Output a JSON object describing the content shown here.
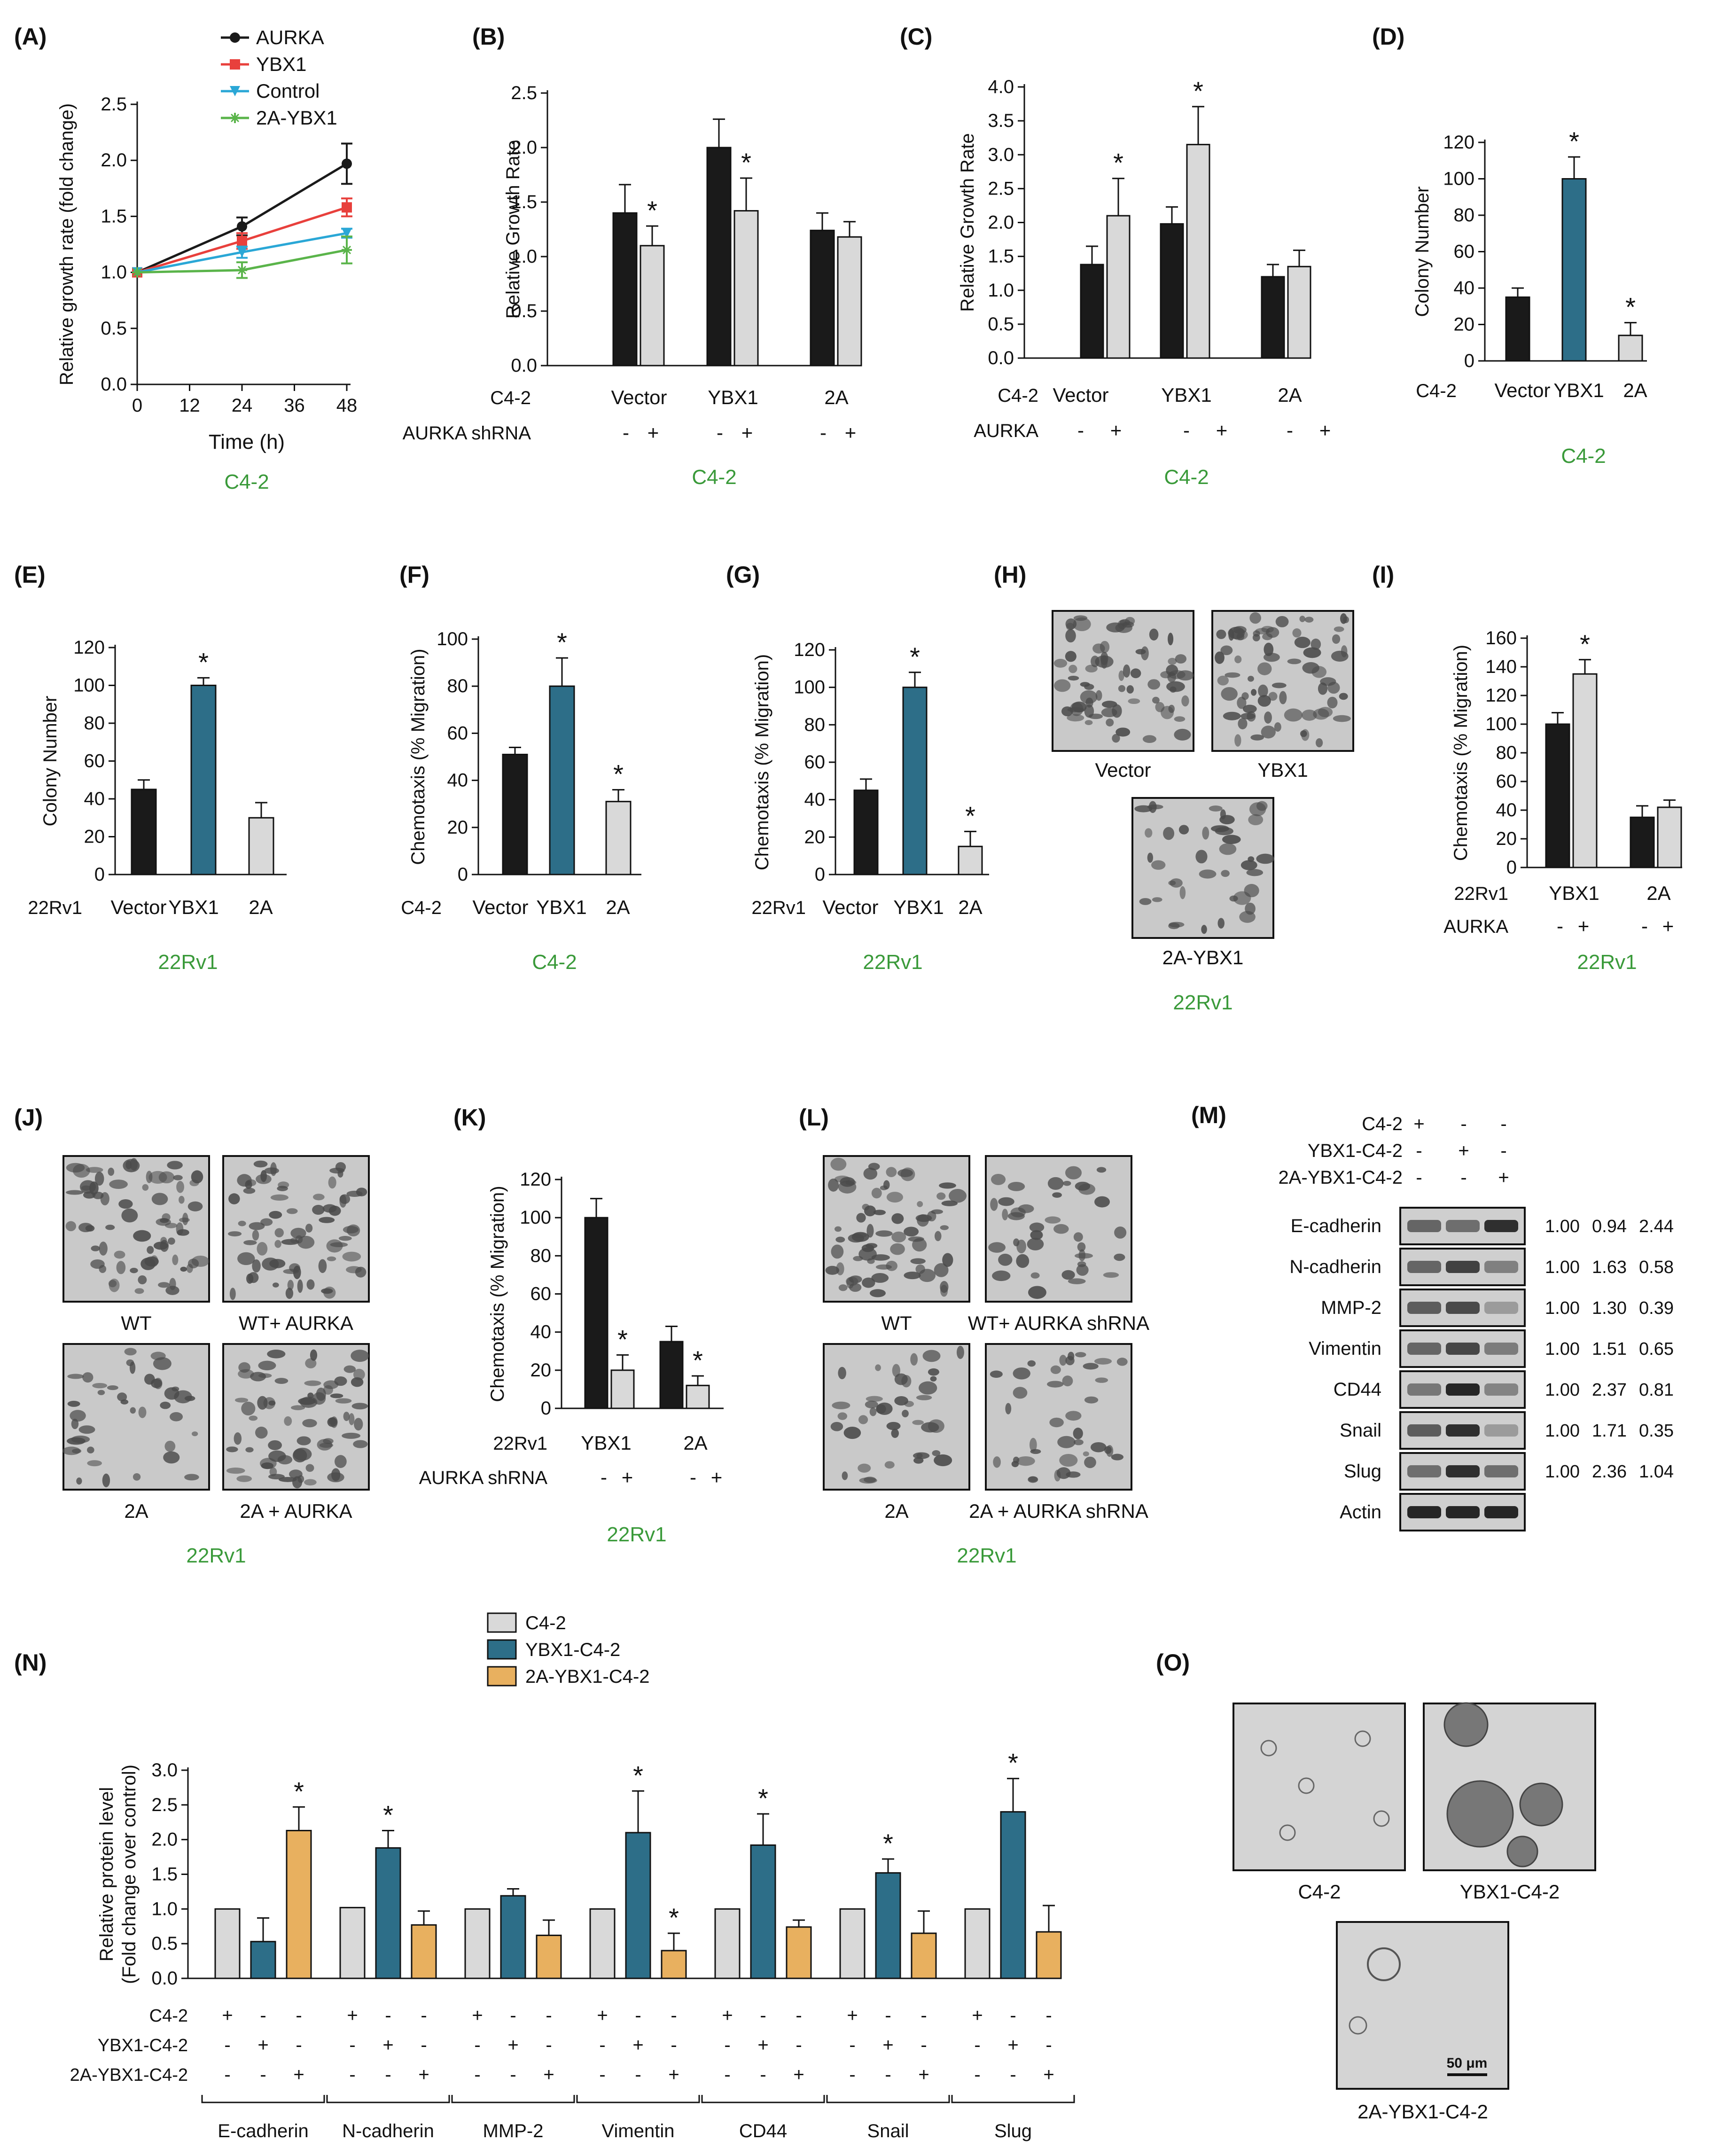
{
  "colors": {
    "black": "#1a1a1a",
    "grey": "#d9d9d9",
    "teal": "#2d6e88",
    "orange": "#e8b05f",
    "red": "#e8403c",
    "blue": "#2aa7d6",
    "green": "#5ab44a",
    "caption": "#3a9a3a"
  },
  "chart_data": [
    {
      "panel": "(A)",
      "type": "line",
      "caption": "C4-2",
      "xlabel": "Time (h)",
      "ylabel": "Relative growth rate (fold change)",
      "x": [
        0,
        24,
        48
      ],
      "xticks": [
        "0",
        "12",
        "24",
        "36",
        "48"
      ],
      "yticks": [
        "0.0",
        "0.5",
        "1.0",
        "1.5",
        "2.0",
        "2.5"
      ],
      "ylim": [
        0,
        2.5
      ],
      "series": [
        {
          "name": "AURKA",
          "values": [
            1.0,
            1.41,
            1.97
          ],
          "err": [
            0,
            0.08,
            0.18
          ],
          "color": "#1a1a1a"
        },
        {
          "name": "YBX1",
          "values": [
            1.0,
            1.28,
            1.58
          ],
          "err": [
            0,
            0.07,
            0.08
          ],
          "color": "#e8403c"
        },
        {
          "name": "Control",
          "values": [
            1.0,
            1.18,
            1.35
          ],
          "err": [
            0,
            0.05,
            0.04
          ],
          "color": "#2aa7d6"
        },
        {
          "name": "2A-YBX1",
          "values": [
            1.0,
            1.02,
            1.2
          ],
          "err": [
            0,
            0.07,
            0.12
          ],
          "color": "#5ab44a"
        }
      ]
    },
    {
      "panel": "(B)",
      "type": "bar",
      "caption": "C4-2",
      "ylabel": "Relative Growth Rate",
      "yticks": [
        "0.0",
        "0.5",
        "1.0",
        "1.5",
        "2.0",
        "2.5"
      ],
      "ylim": [
        0,
        2.5
      ],
      "row1_label": "C4-2",
      "row2_label": "AURKA shRNA",
      "groups": [
        "Vector",
        "YBX1",
        "2A"
      ],
      "signs": [
        "-",
        "+"
      ],
      "values": [
        [
          1.4,
          1.1
        ],
        [
          2.0,
          1.42
        ],
        [
          1.24,
          1.18
        ]
      ],
      "err": [
        [
          0.26,
          0.18
        ],
        [
          0.26,
          0.3
        ],
        [
          0.16,
          0.14
        ]
      ],
      "stars": [
        [
          false,
          true
        ],
        [
          false,
          true
        ],
        [
          false,
          false
        ]
      ],
      "colors": [
        [
          "#1a1a1a",
          "#d9d9d9"
        ],
        [
          "#1a1a1a",
          "#d9d9d9"
        ],
        [
          "#1a1a1a",
          "#d9d9d9"
        ]
      ]
    },
    {
      "panel": "(C)",
      "type": "bar",
      "caption": "C4-2",
      "ylabel": "Relative Growth Rate",
      "yticks": [
        "0.0",
        "0.5",
        "1.0",
        "1.5",
        "2.0",
        "2.5",
        "3.0",
        "3.5",
        "4.0"
      ],
      "ylim": [
        0,
        4.0
      ],
      "row1_label": "C4-2",
      "row2_label": "AURKA",
      "groups": [
        "Vector",
        "YBX1",
        "2A"
      ],
      "signs": [
        "-",
        "+"
      ],
      "values": [
        [
          1.38,
          2.1
        ],
        [
          1.98,
          3.15
        ],
        [
          1.2,
          1.35
        ]
      ],
      "err": [
        [
          0.27,
          0.55
        ],
        [
          0.25,
          0.56
        ],
        [
          0.18,
          0.24
        ]
      ],
      "stars": [
        [
          false,
          true
        ],
        [
          false,
          true
        ],
        [
          false,
          false
        ]
      ],
      "colors": [
        [
          "#1a1a1a",
          "#d9d9d9"
        ],
        [
          "#1a1a1a",
          "#d9d9d9"
        ],
        [
          "#1a1a1a",
          "#d9d9d9"
        ]
      ]
    },
    {
      "panel": "(D)",
      "type": "bar",
      "caption": "C4-2",
      "ylabel": "Colony Number",
      "yticks": [
        "0",
        "20",
        "40",
        "60",
        "80",
        "100",
        "120"
      ],
      "ylim": [
        0,
        120
      ],
      "row1_label": "C4-2",
      "groups": [
        "Vector",
        "YBX1",
        "2A"
      ],
      "values": [
        [
          35
        ],
        [
          100
        ],
        [
          14
        ]
      ],
      "err": [
        [
          5
        ],
        [
          12
        ],
        [
          7
        ]
      ],
      "stars": [
        [
          false
        ],
        [
          true
        ],
        [
          true
        ]
      ],
      "colors": [
        [
          "#1a1a1a"
        ],
        [
          "#2d6e88"
        ],
        [
          "#d9d9d9"
        ]
      ]
    },
    {
      "panel": "(E)",
      "type": "bar",
      "caption": "22Rv1",
      "ylabel": "Colony Number",
      "yticks": [
        "0",
        "20",
        "40",
        "60",
        "80",
        "100",
        "120"
      ],
      "ylim": [
        0,
        120
      ],
      "row1_label": "22Rv1",
      "groups": [
        "Vector",
        "YBX1",
        "2A"
      ],
      "values": [
        [
          45
        ],
        [
          100
        ],
        [
          30
        ]
      ],
      "err": [
        [
          5
        ],
        [
          4
        ],
        [
          8
        ]
      ],
      "stars": [
        [
          false
        ],
        [
          true
        ],
        [
          false
        ]
      ],
      "colors": [
        [
          "#1a1a1a"
        ],
        [
          "#2d6e88"
        ],
        [
          "#d9d9d9"
        ]
      ]
    },
    {
      "panel": "(F)",
      "type": "bar",
      "caption": "C4-2",
      "ylabel": "Chemotaxis (% Migration)",
      "yticks": [
        "0",
        "20",
        "40",
        "60",
        "80",
        "100"
      ],
      "ylim": [
        0,
        100
      ],
      "row1_label": "C4-2",
      "groups": [
        "Vector",
        "YBX1",
        "2A"
      ],
      "values": [
        [
          51
        ],
        [
          80
        ],
        [
          31
        ]
      ],
      "err": [
        [
          3
        ],
        [
          12
        ],
        [
          5
        ]
      ],
      "stars": [
        [
          false
        ],
        [
          true
        ],
        [
          true
        ]
      ],
      "colors": [
        [
          "#1a1a1a"
        ],
        [
          "#2d6e88"
        ],
        [
          "#d9d9d9"
        ]
      ]
    },
    {
      "panel": "(G)",
      "type": "bar",
      "caption": "22Rv1",
      "ylabel": "Chemotaxis (% Migration)",
      "yticks": [
        "0",
        "20",
        "40",
        "60",
        "80",
        "100",
        "120"
      ],
      "ylim": [
        0,
        120
      ],
      "row1_label": "22Rv1",
      "groups": [
        "Vector",
        "YBX1",
        "2A"
      ],
      "values": [
        [
          45
        ],
        [
          100
        ],
        [
          15
        ]
      ],
      "err": [
        [
          6
        ],
        [
          8
        ],
        [
          8
        ]
      ],
      "stars": [
        [
          false
        ],
        [
          true
        ],
        [
          true
        ]
      ],
      "colors": [
        [
          "#1a1a1a"
        ],
        [
          "#2d6e88"
        ],
        [
          "#d9d9d9"
        ]
      ]
    },
    {
      "panel": "(I)",
      "type": "bar",
      "caption": "22Rv1",
      "ylabel": "Chemotaxis (% Migration)",
      "yticks": [
        "0",
        "20",
        "40",
        "60",
        "80",
        "100",
        "120",
        "140",
        "160"
      ],
      "ylim": [
        0,
        160
      ],
      "row1_label": "22Rv1",
      "row2_label": "AURKA",
      "groups": [
        "YBX1",
        "2A"
      ],
      "signs": [
        "-",
        "+"
      ],
      "values": [
        [
          100,
          135
        ],
        [
          35,
          42
        ]
      ],
      "err": [
        [
          8,
          10
        ],
        [
          8,
          5
        ]
      ],
      "stars": [
        [
          false,
          true
        ],
        [
          false,
          false
        ]
      ],
      "colors": [
        [
          "#1a1a1a",
          "#d9d9d9"
        ],
        [
          "#1a1a1a",
          "#d9d9d9"
        ]
      ]
    },
    {
      "panel": "(K)",
      "type": "bar",
      "caption": "22Rv1",
      "ylabel": "Chemotaxis (% Migration)",
      "yticks": [
        "0",
        "20",
        "40",
        "60",
        "80",
        "100",
        "120"
      ],
      "ylim": [
        0,
        120
      ],
      "row1_label": "22Rv1",
      "row2_label": "AURKA shRNA",
      "groups": [
        "YBX1",
        "2A"
      ],
      "signs": [
        "-",
        "+"
      ],
      "values": [
        [
          100,
          20
        ],
        [
          35,
          12
        ]
      ],
      "err": [
        [
          10,
          8
        ],
        [
          8,
          5
        ]
      ],
      "stars": [
        [
          false,
          true
        ],
        [
          false,
          true
        ]
      ],
      "colors": [
        [
          "#1a1a1a",
          "#d9d9d9"
        ],
        [
          "#1a1a1a",
          "#d9d9d9"
        ]
      ]
    },
    {
      "panel": "(N)",
      "type": "bar",
      "ylabel": [
        "Relative protein level",
        "(Fold change over control)"
      ],
      "yticks": [
        "0.0",
        "0.5",
        "1.0",
        "1.5",
        "2.0",
        "2.5",
        "3.0"
      ],
      "ylim": [
        0,
        3.0
      ],
      "legend": [
        "C4-2",
        "YBX1-C4-2",
        "2A-YBX1-C4-2"
      ],
      "row_labels": [
        "C4-2",
        "YBX1-C4-2",
        "2A-YBX1-C4-2"
      ],
      "sign_rows": [
        [
          "+",
          "-",
          "-"
        ],
        [
          "-",
          "+",
          "-"
        ],
        [
          "-",
          "-",
          "+"
        ]
      ],
      "groups": [
        "E-cadherin",
        "N-cadherin",
        "MMP-2",
        "Vimentin",
        "CD44",
        "Snail",
        "Slug"
      ],
      "values": [
        [
          1.0,
          0.53,
          2.13
        ],
        [
          1.02,
          1.88,
          0.77
        ],
        [
          1.0,
          1.19,
          0.62
        ],
        [
          1.0,
          2.1,
          0.4
        ],
        [
          1.0,
          1.92,
          0.74
        ],
        [
          1.0,
          1.52,
          0.65
        ],
        [
          1.0,
          2.4,
          0.67
        ]
      ],
      "err": [
        [
          0,
          0.34,
          0.34
        ],
        [
          0,
          0.25,
          0.2
        ],
        [
          0,
          0.1,
          0.22
        ],
        [
          0,
          0.6,
          0.25
        ],
        [
          0,
          0.45,
          0.1
        ],
        [
          0,
          0.2,
          0.32
        ],
        [
          0,
          0.48,
          0.38
        ]
      ],
      "stars": [
        [
          false,
          false,
          true
        ],
        [
          false,
          true,
          false
        ],
        [
          false,
          false,
          false
        ],
        [
          false,
          true,
          true
        ],
        [
          false,
          true,
          false
        ],
        [
          false,
          true,
          false
        ],
        [
          false,
          true,
          false
        ]
      ],
      "colors": [
        [
          "#d9d9d9",
          "#2d6e88",
          "#e8b05f"
        ],
        [
          "#d9d9d9",
          "#2d6e88",
          "#e8b05f"
        ],
        [
          "#d9d9d9",
          "#2d6e88",
          "#e8b05f"
        ],
        [
          "#d9d9d9",
          "#2d6e88",
          "#e8b05f"
        ],
        [
          "#d9d9d9",
          "#2d6e88",
          "#e8b05f"
        ],
        [
          "#d9d9d9",
          "#2d6e88",
          "#e8b05f"
        ],
        [
          "#d9d9d9",
          "#2d6e88",
          "#e8b05f"
        ]
      ]
    }
  ],
  "panel_H": {
    "label": "(H)",
    "images": [
      "Vector",
      "YBX1",
      "2A-YBX1"
    ],
    "caption": "22Rv1"
  },
  "panel_J": {
    "label": "(J)",
    "images": [
      "WT",
      "WT+ AURKA",
      "2A",
      "2A + AURKA"
    ],
    "caption": "22Rv1"
  },
  "panel_L": {
    "label": "(L)",
    "images": [
      "WT",
      "WT+ AURKA shRNA",
      "2A",
      "2A + AURKA shRNA"
    ],
    "caption": "22Rv1"
  },
  "panel_M": {
    "label": "(M)",
    "rows": [
      "C4-2",
      "YBX1-C4-2",
      "2A-YBX1-C4-2"
    ],
    "signs": [
      [
        "+",
        "-",
        "-"
      ],
      [
        "-",
        "+",
        "-"
      ],
      [
        "-",
        "-",
        "+"
      ]
    ],
    "blots": [
      {
        "name": "E-cadherin",
        "values": [
          "1.00",
          "0.94",
          "2.44"
        ],
        "intensity": [
          0.55,
          0.5,
          0.85
        ]
      },
      {
        "name": "N-cadherin",
        "values": [
          "1.00",
          "1.63",
          "0.58"
        ],
        "intensity": [
          0.55,
          0.75,
          0.4
        ]
      },
      {
        "name": "MMP-2",
        "values": [
          "1.00",
          "1.30",
          "0.39"
        ],
        "intensity": [
          0.6,
          0.7,
          0.25
        ]
      },
      {
        "name": "Vimentin",
        "values": [
          "1.00",
          "1.51",
          "0.65"
        ],
        "intensity": [
          0.55,
          0.72,
          0.42
        ]
      },
      {
        "name": "CD44",
        "values": [
          "1.00",
          "2.37",
          "0.81"
        ],
        "intensity": [
          0.45,
          0.9,
          0.38
        ]
      },
      {
        "name": "Snail",
        "values": [
          "1.00",
          "1.71",
          "0.35"
        ],
        "intensity": [
          0.6,
          0.85,
          0.25
        ]
      },
      {
        "name": "Slug",
        "values": [
          "1.00",
          "2.36",
          "1.04"
        ],
        "intensity": [
          0.5,
          0.85,
          0.5
        ]
      },
      {
        "name": "Actin",
        "values": [],
        "intensity": [
          0.9,
          0.9,
          0.9
        ]
      }
    ]
  },
  "panel_O": {
    "label": "(O)",
    "images": [
      "C4-2",
      "YBX1-C4-2",
      "2A-YBX1-C4-2"
    ],
    "scale_bar": "50 μm"
  }
}
